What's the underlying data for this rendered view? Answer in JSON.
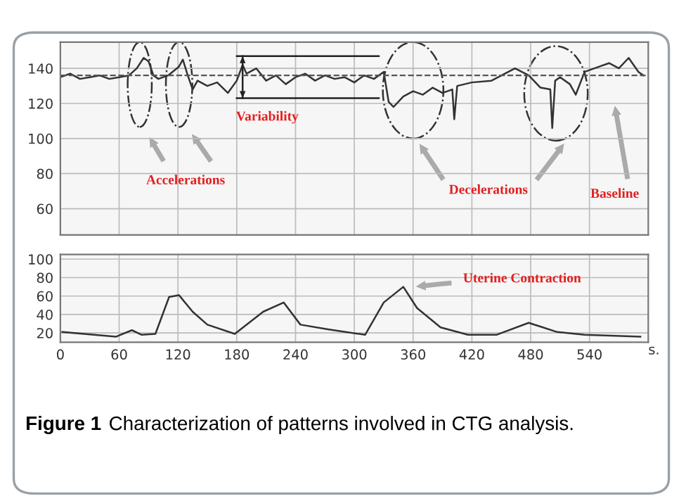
{
  "chart_data": [
    {
      "type": "line",
      "tick_labels": "y",
      "grid": true,
      "xlim": [
        0,
        600
      ],
      "ylim": [
        45,
        155
      ],
      "xticks": [
        0,
        60,
        120,
        180,
        240,
        300,
        360,
        420,
        480,
        540
      ],
      "yticks": [
        60,
        80,
        100,
        120,
        140
      ],
      "series": [
        {
          "color": "#333333",
          "x": [
            0,
            10,
            20,
            30,
            40,
            50,
            60,
            70,
            78,
            85,
            90,
            95,
            100,
            110,
            121,
            125,
            130,
            135,
            140,
            150,
            160,
            171,
            180,
            186,
            190,
            200,
            210,
            220,
            230,
            240,
            250,
            260,
            270,
            280,
            290,
            300,
            310,
            320,
            330,
            335,
            340,
            350,
            360,
            370,
            380,
            390,
            400,
            402,
            405,
            420,
            440,
            464,
            478,
            490,
            500,
            502,
            505,
            510,
            520,
            526,
            535,
            550,
            560,
            570,
            580,
            590,
            595
          ],
          "values": [
            135,
            137,
            134,
            135,
            136,
            134,
            135,
            136,
            140,
            146,
            144,
            136,
            134,
            136,
            141,
            145,
            136,
            128,
            133,
            130,
            132,
            126,
            133,
            142,
            137,
            140,
            133,
            136,
            131,
            135,
            137,
            133,
            136,
            134,
            135,
            132,
            136,
            134,
            138,
            121,
            118,
            124,
            127,
            125,
            129,
            126,
            128,
            111,
            130,
            132,
            133,
            140,
            136,
            129,
            128,
            106,
            133,
            135,
            131,
            125,
            138,
            141,
            143,
            140,
            146,
            138,
            136
          ]
        },
        {
          "color": "#222222",
          "x": [
            180,
            325
          ],
          "values": [
            147,
            147
          ]
        },
        {
          "color": "#222222",
          "x": [
            180,
            325
          ],
          "values": [
            123,
            123
          ]
        },
        {
          "color": "#222222",
          "x": [
            186,
            186
          ],
          "values": [
            147,
            123
          ]
        }
      ],
      "ref_lines": [
        {
          "axis": "y",
          "value": 136,
          "color": "#555555",
          "line_style": "dashed"
        }
      ],
      "annotations": [
        "Accelerations",
        "Variability",
        "Decelerations",
        "Baseline"
      ]
    },
    {
      "type": "line",
      "grid": true,
      "xlim": [
        0,
        600
      ],
      "ylim": [
        10,
        105
      ],
      "xticks": [
        0,
        60,
        120,
        180,
        240,
        300,
        360,
        420,
        480,
        540
      ],
      "yticks": [
        20,
        40,
        60,
        80,
        100
      ],
      "xlabel": "s.",
      "series": [
        {
          "color": "#333333",
          "x": [
            2,
            57,
            73,
            83,
            97,
            111,
            121,
            135,
            150,
            178,
            207,
            228,
            245,
            273,
            311,
            330,
            350,
            364,
            388,
            416,
            445,
            478,
            507,
            535,
            592
          ],
          "values": [
            21,
            16,
            23,
            18,
            19,
            59,
            61,
            43,
            29,
            19,
            43,
            53,
            29,
            24,
            18,
            53,
            70,
            47,
            26,
            18,
            18,
            31,
            21,
            18,
            16
          ]
        }
      ],
      "annotations": [
        "Uterine Contraction",
        "Figure 1",
        "Characterization of patterns involved in CTG analysis."
      ]
    }
  ]
}
